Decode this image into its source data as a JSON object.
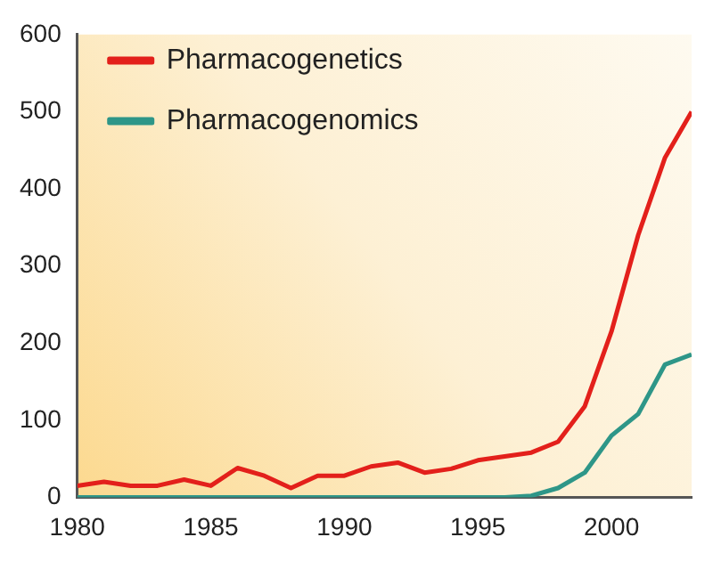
{
  "chart_data": {
    "type": "line",
    "x": [
      1980,
      1981,
      1982,
      1983,
      1984,
      1985,
      1986,
      1987,
      1988,
      1989,
      1990,
      1991,
      1992,
      1993,
      1994,
      1995,
      1996,
      1997,
      1998,
      1999,
      2000,
      2001,
      2002,
      2003
    ],
    "series": [
      {
        "name": "Pharmacogenetics",
        "color": "#e3201b",
        "values": [
          15,
          20,
          15,
          15,
          23,
          15,
          38,
          28,
          12,
          28,
          28,
          40,
          45,
          32,
          37,
          48,
          53,
          58,
          72,
          118,
          215,
          340,
          440,
          500
        ]
      },
      {
        "name": "Pharmacogenomics",
        "color": "#2e9688",
        "values": [
          0,
          0,
          0,
          0,
          0,
          0,
          0,
          0,
          0,
          0,
          0,
          0,
          0,
          0,
          0,
          0,
          0,
          2,
          12,
          32,
          80,
          108,
          172,
          185
        ]
      }
    ],
    "xlim": [
      1980,
      2003
    ],
    "xticks": [
      1980,
      1985,
      1990,
      1995,
      2000,
      {
        "value": 2003,
        "label": null
      }
    ],
    "ylim": [
      0,
      600
    ],
    "yticks": [
      0,
      100,
      200,
      300,
      400,
      500,
      600
    ],
    "grid": false,
    "legend": "top left",
    "marker": "none",
    "line_style": "solid"
  }
}
